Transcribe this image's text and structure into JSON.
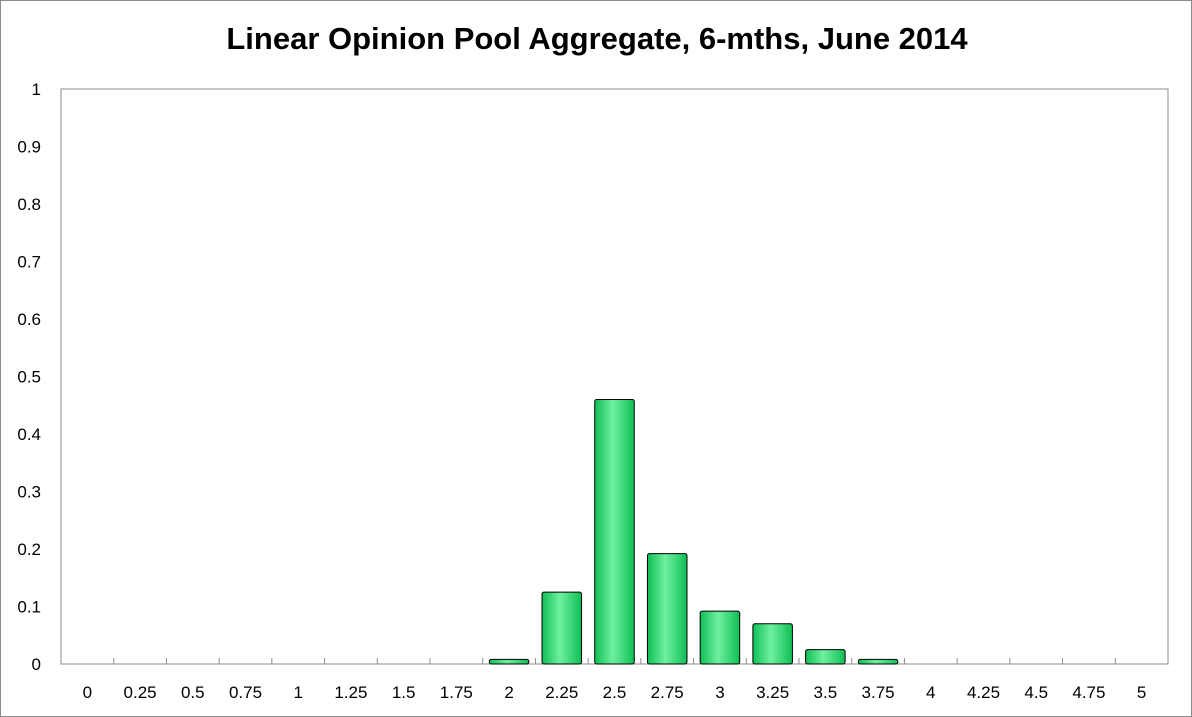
{
  "chart_data": {
    "type": "bar",
    "title": "Linear Opinion Pool Aggregate, 6-mths, June 2014",
    "xlabel": "",
    "ylabel": "",
    "categories": [
      "0",
      "0.25",
      "0.5",
      "0.75",
      "1",
      "1.25",
      "1.5",
      "1.75",
      "2",
      "2.25",
      "2.5",
      "2.75",
      "3",
      "3.25",
      "3.5",
      "3.75",
      "4",
      "4.25",
      "4.5",
      "4.75",
      "5"
    ],
    "values": [
      0,
      0,
      0,
      0,
      0,
      0,
      0,
      0,
      0.008,
      0.125,
      0.46,
      0.192,
      0.092,
      0.07,
      0.025,
      0.008,
      0,
      0,
      0,
      0,
      0
    ],
    "ylim": [
      0,
      1
    ],
    "yticks": [
      "0",
      "0.1",
      "0.2",
      "0.3",
      "0.4",
      "0.5",
      "0.6",
      "0.7",
      "0.8",
      "0.9",
      "1"
    ],
    "grid": false,
    "legend": "none",
    "colors": {
      "bar_fill": "#0fbf55",
      "bar_highlight": "#6ff0a0",
      "bar_edge": "#000000",
      "plot_border": "#8c8c8c"
    }
  }
}
